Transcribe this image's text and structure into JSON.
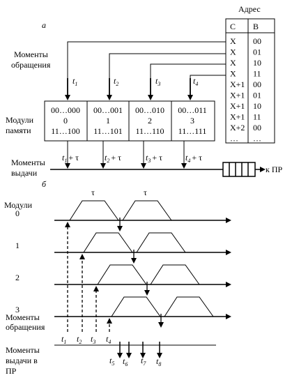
{
  "part_a": {
    "label": "а",
    "address": {
      "title": "Адрес",
      "col_c": "C",
      "col_b": "B",
      "rows": [
        {
          "c": "X",
          "b": "00"
        },
        {
          "c": "X",
          "b": "01"
        },
        {
          "c": "X",
          "b": "10"
        },
        {
          "c": "X",
          "b": "11"
        },
        {
          "c": "X+1",
          "b": "00"
        },
        {
          "c": "X+1",
          "b": "01"
        },
        {
          "c": "X+1",
          "b": "10"
        },
        {
          "c": "X+1",
          "b": "11"
        },
        {
          "c": "X+2",
          "b": "00"
        },
        {
          "c": "…",
          "b": "…"
        }
      ]
    },
    "access_label": [
      "Моменты",
      "обращения"
    ],
    "modules_label": [
      "Модули",
      "памяти"
    ],
    "output_label": [
      "Моменты",
      "выдачи"
    ],
    "times": [
      "t",
      "t",
      "t",
      "t"
    ],
    "time_subs": [
      "1",
      "2",
      "3",
      "4"
    ],
    "modules": [
      {
        "top": "00…000",
        "num": "0",
        "bottom": "11…100"
      },
      {
        "top": "00…001",
        "num": "1",
        "bottom": "11…101"
      },
      {
        "top": "00…010",
        "num": "2",
        "bottom": "11…110"
      },
      {
        "top": "00…011",
        "num": "3",
        "bottom": "11…111"
      }
    ],
    "output_suffix": "+ τ",
    "to_cpu": "к ПР"
  },
  "part_b": {
    "label": "б",
    "modules_title": "Модули",
    "module_numbers": [
      "0",
      "1",
      "2",
      "3"
    ],
    "tau": "τ",
    "access_label": [
      "Моменты",
      "обращения"
    ],
    "output_label": [
      "Моменты",
      "выдачи в",
      "ПР"
    ],
    "access_times": [
      "t",
      "t",
      "t",
      "t"
    ],
    "access_subs": [
      "1",
      "2",
      "3",
      "4"
    ],
    "output_times": [
      "t",
      "t",
      "t",
      "t"
    ],
    "output_subs": [
      "5",
      "6",
      "7",
      "8"
    ]
  }
}
